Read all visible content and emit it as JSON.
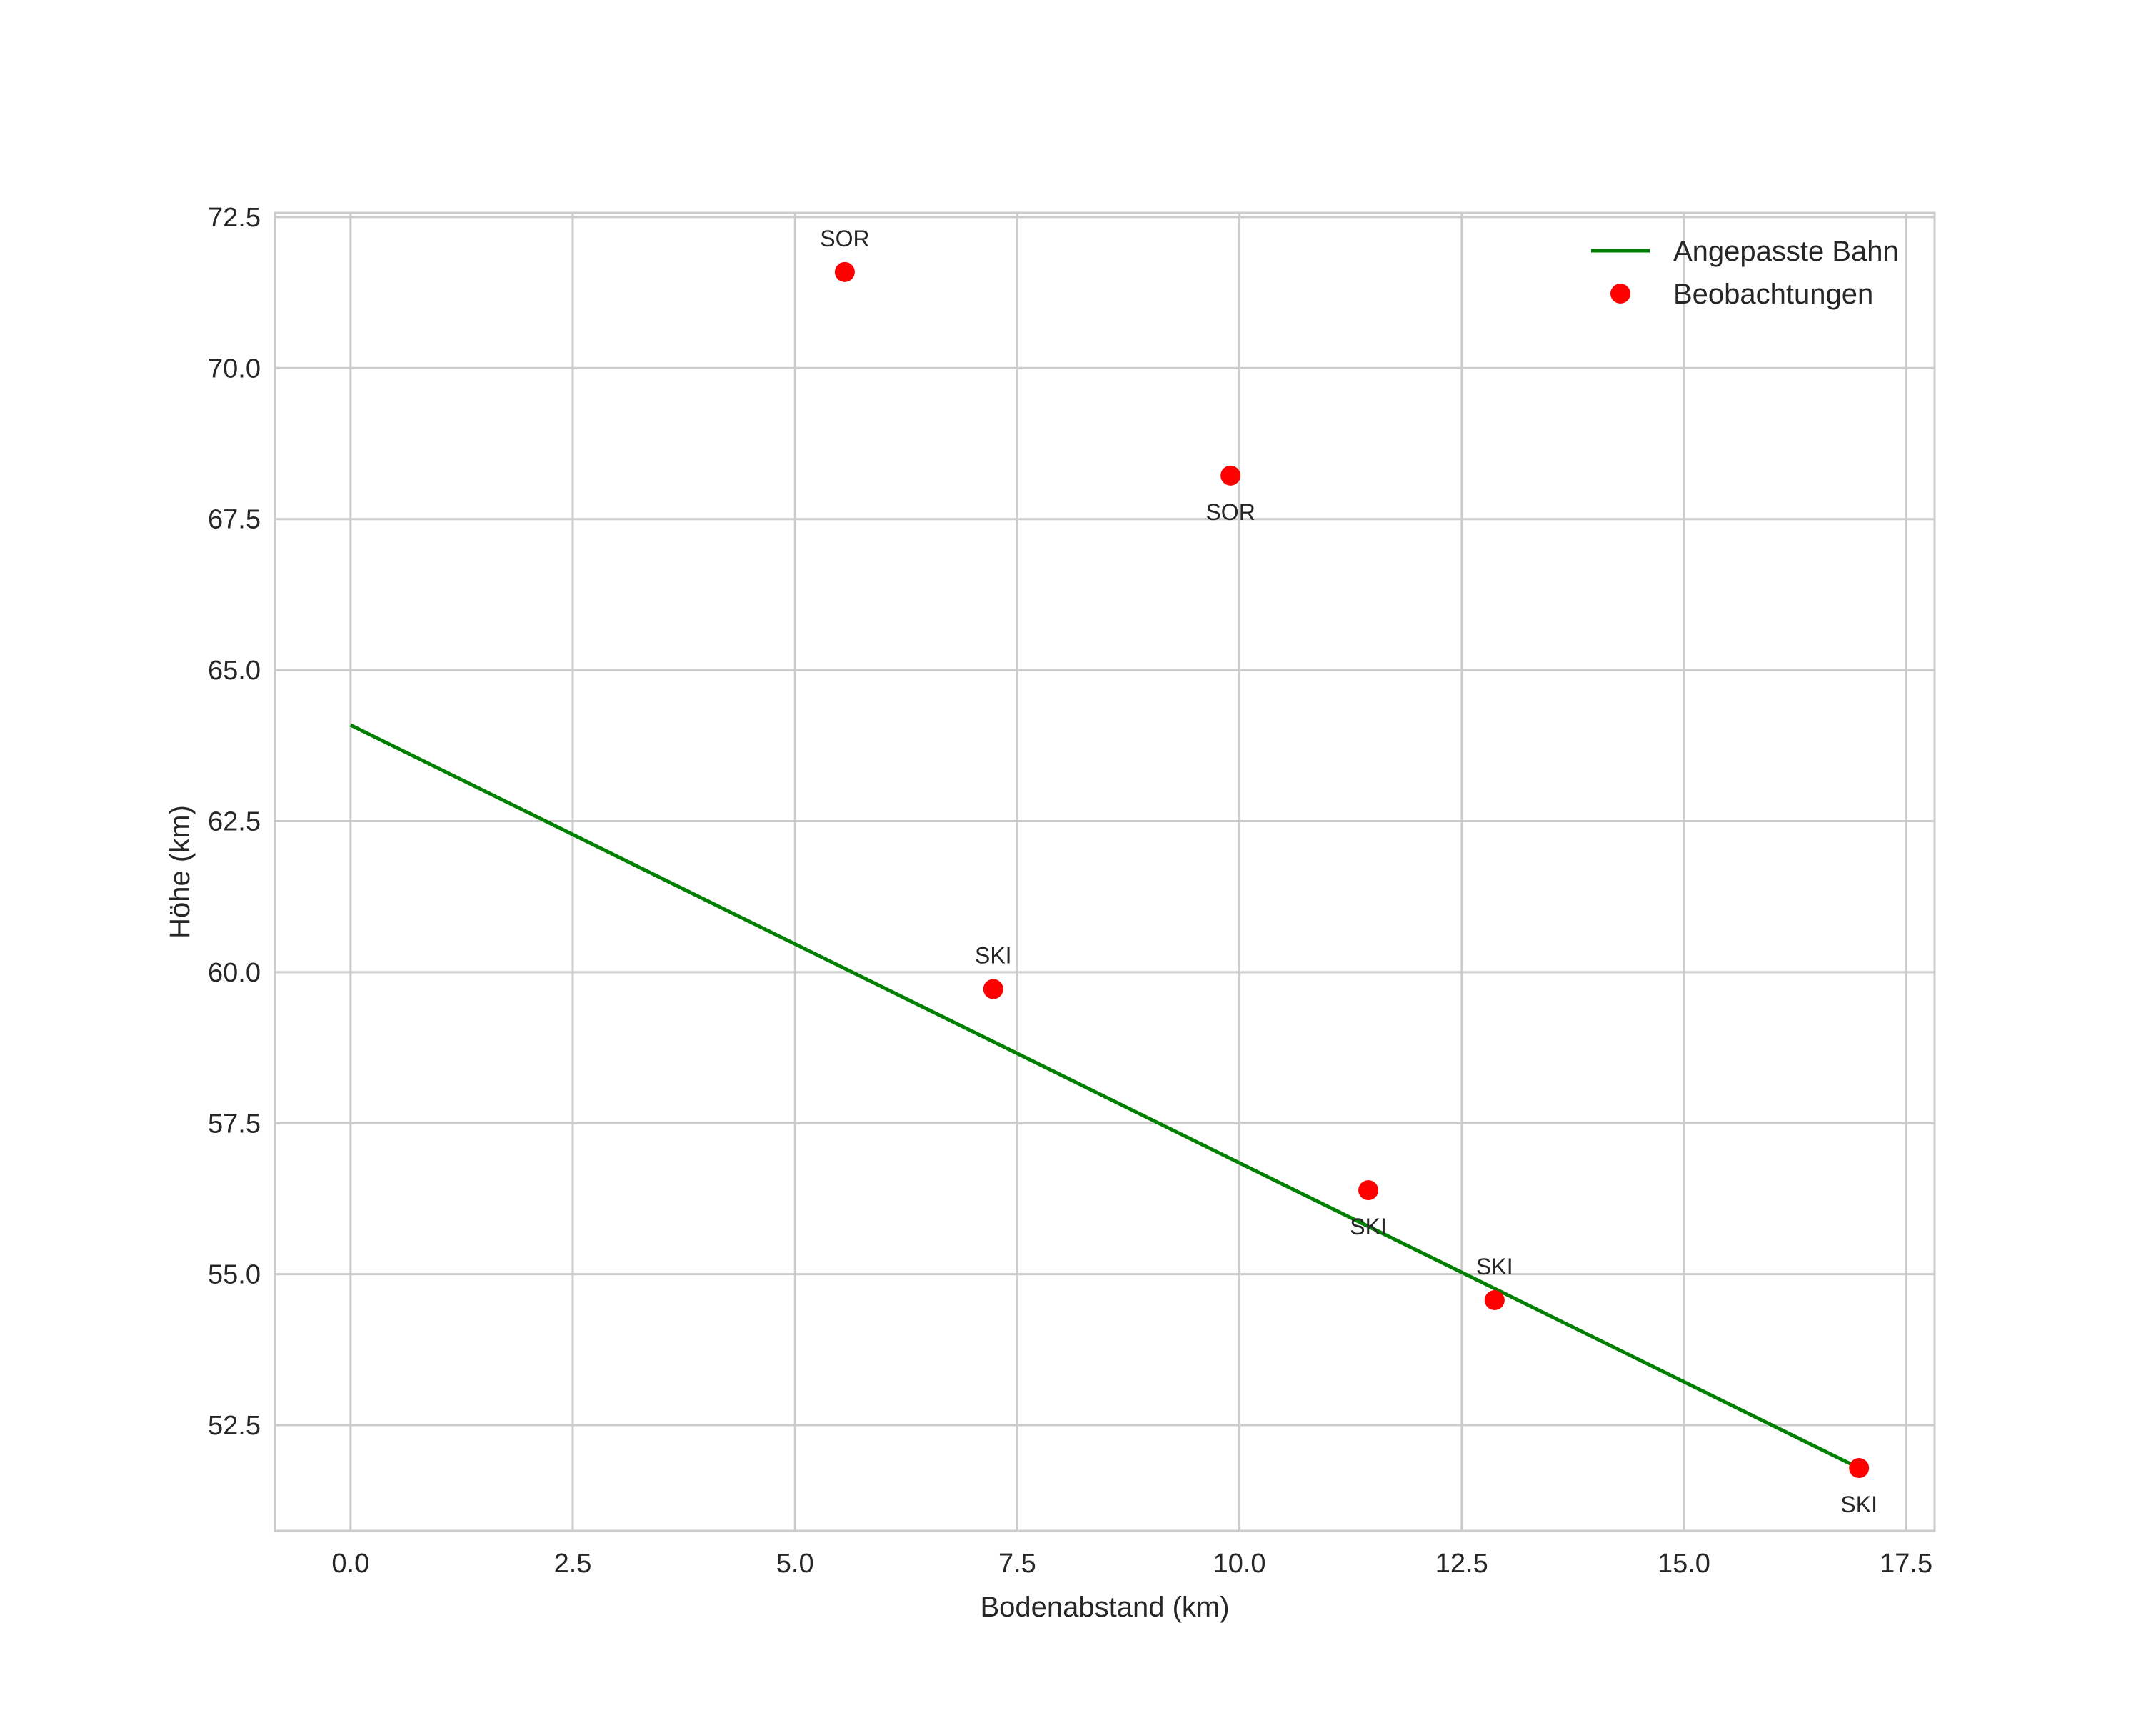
{
  "chart_data": {
    "type": "scatter",
    "title": "",
    "xlabel": "Bodenabstand (km)",
    "ylabel": "Höhe (km)",
    "xlim": [
      -0.85,
      17.82
    ],
    "ylim": [
      50.75,
      72.57
    ],
    "xticks": [
      0.0,
      2.5,
      5.0,
      7.5,
      10.0,
      12.5,
      15.0,
      17.5
    ],
    "xtick_labels": [
      "0.0",
      "2.5",
      "5.0",
      "7.5",
      "10.0",
      "12.5",
      "15.0",
      "17.5"
    ],
    "yticks": [
      52.5,
      55.0,
      57.5,
      60.0,
      62.5,
      65.0,
      67.5,
      70.0,
      72.5
    ],
    "ytick_labels": [
      "52.5",
      "55.0",
      "57.5",
      "60.0",
      "62.5",
      "65.0",
      "67.5",
      "70.0",
      "72.5"
    ],
    "grid": true,
    "legend_position": "upper right",
    "series": [
      {
        "name": "Angepasste Bahn",
        "type": "line",
        "color": "#008000",
        "x": [
          0.0,
          16.97
        ],
        "y": [
          64.09,
          51.79
        ]
      },
      {
        "name": "Beobachtungen",
        "type": "scatter",
        "color": "#ff0000",
        "points": [
          {
            "x": 5.56,
            "y": 71.59,
            "label": "SOR",
            "label_pos": "above"
          },
          {
            "x": 9.9,
            "y": 68.22,
            "label": "SOR",
            "label_pos": "below"
          },
          {
            "x": 7.23,
            "y": 59.72,
            "label": "SKI",
            "label_pos": "above"
          },
          {
            "x": 11.45,
            "y": 56.39,
            "label": "SKI",
            "label_pos": "below"
          },
          {
            "x": 12.87,
            "y": 54.57,
            "label": "SKI",
            "label_pos": "above"
          },
          {
            "x": 16.97,
            "y": 51.79,
            "label": "SKI",
            "label_pos": "below"
          }
        ]
      }
    ]
  }
}
